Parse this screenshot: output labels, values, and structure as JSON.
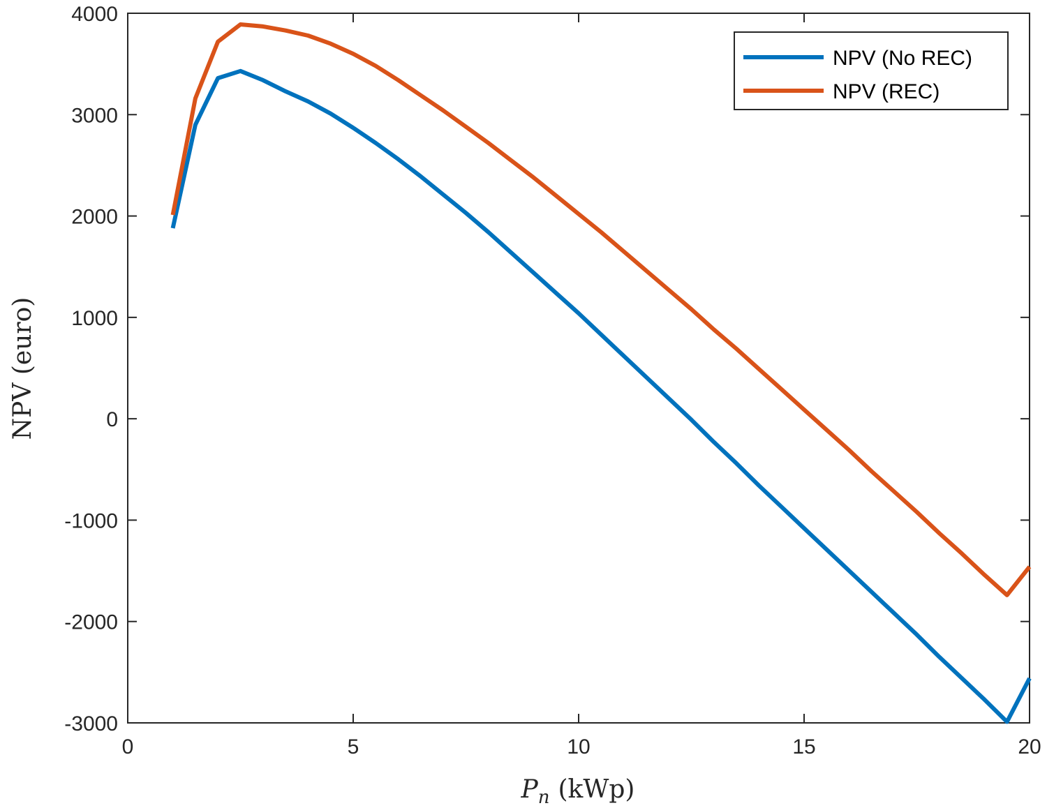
{
  "chart_data": {
    "type": "line",
    "title": "",
    "xlabel": {
      "symbol": "P",
      "subscript": "n",
      "unit": "(kWp)"
    },
    "ylabel": "NPV (euro)",
    "xlim": [
      0,
      20
    ],
    "ylim": [
      -3000,
      4000
    ],
    "xticks": [
      0,
      5,
      10,
      15,
      20
    ],
    "yticks": [
      -3000,
      -2000,
      -1000,
      0,
      1000,
      2000,
      3000,
      4000
    ],
    "grid": false,
    "legend_position": "top-right",
    "x": [
      1,
      1.5,
      2,
      2.5,
      3,
      3.5,
      4,
      4.5,
      5,
      5.5,
      6,
      6.5,
      7,
      7.5,
      8,
      8.5,
      9,
      9.5,
      10,
      10.5,
      11,
      11.5,
      12,
      12.5,
      13,
      13.5,
      14,
      14.5,
      15,
      15.5,
      16,
      16.5,
      17,
      17.5,
      18,
      18.5,
      19,
      19.5,
      20
    ],
    "series": [
      {
        "name": "NPV (No REC)",
        "color": "#0072BD",
        "values": [
          1880,
          2900,
          3360,
          3430,
          3340,
          3230,
          3130,
          3010,
          2870,
          2720,
          2560,
          2390,
          2210,
          2030,
          1840,
          1640,
          1440,
          1240,
          1040,
          830,
          620,
          410,
          200,
          -10,
          -230,
          -440,
          -660,
          -870,
          -1080,
          -1290,
          -1500,
          -1710,
          -1920,
          -2130,
          -2350,
          -2560,
          -2770,
          -2990,
          -2560
        ]
      },
      {
        "name": "NPV (REC)",
        "color": "#D95319",
        "values": [
          2010,
          3160,
          3720,
          3890,
          3870,
          3830,
          3780,
          3700,
          3600,
          3480,
          3340,
          3190,
          3040,
          2880,
          2720,
          2550,
          2380,
          2200,
          2020,
          1840,
          1650,
          1460,
          1270,
          1080,
          880,
          690,
          490,
          290,
          90,
          -110,
          -310,
          -520,
          -720,
          -920,
          -1130,
          -1330,
          -1540,
          -1740,
          -1460
        ]
      }
    ]
  }
}
